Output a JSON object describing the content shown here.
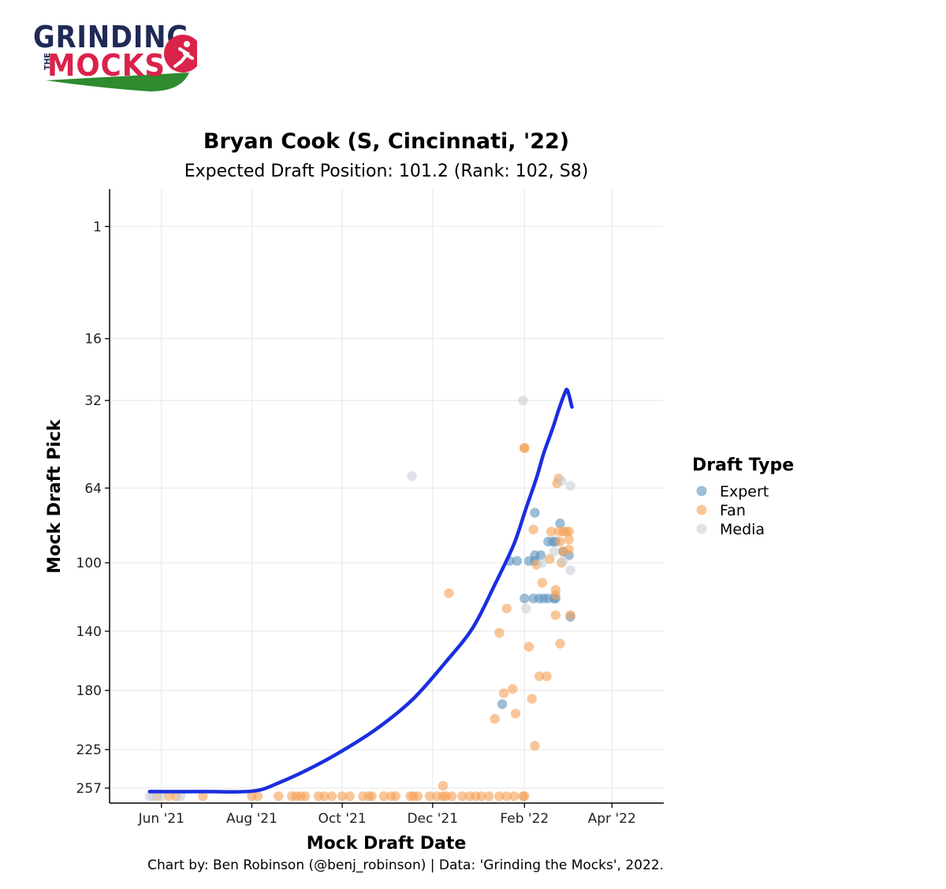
{
  "logo": {
    "line1": "GRINDING",
    "the": "THE",
    "line2": "MOCKS",
    "colors": {
      "navy": "#1f2a56",
      "red": "#d9234a",
      "green": "#2e8b2e"
    }
  },
  "chart_data": {
    "type": "scatter",
    "title": "Bryan Cook (S, Cincinnati, '22)",
    "subtitle": "Expected Draft Position: 101.2 (Rank: 102, S8)",
    "xlabel": "Mock Draft Date",
    "ylabel": "Mock Draft Pick",
    "x_ticks": [
      "2021-06-01",
      "2021-08-01",
      "2021-10-01",
      "2021-12-01",
      "2022-02-01",
      "2022-04-01"
    ],
    "x_tick_labels": [
      "Jun '21",
      "Aug '21",
      "Oct '21",
      "Dec '21",
      "Feb '22",
      "Apr '22"
    ],
    "xlim": [
      "2021-04-27",
      "2022-05-06"
    ],
    "y_scale": "sqrt",
    "y_reversed": true,
    "y_ticks": [
      1,
      16,
      32,
      64,
      100,
      140,
      180,
      225,
      257
    ],
    "ylim": [
      0,
      270
    ],
    "grid": true,
    "legend": {
      "title": "Draft Type",
      "position": "right"
    },
    "series": [
      {
        "name": "Expert",
        "color": "#5b93bd",
        "points": [
          [
            "2022-01-17",
            190
          ],
          [
            "2022-01-22",
            99
          ],
          [
            "2022-01-27",
            99
          ],
          [
            "2022-02-01",
            120
          ],
          [
            "2022-02-04",
            99
          ],
          [
            "2022-02-07",
            120
          ],
          [
            "2022-02-08",
            99
          ],
          [
            "2022-02-08",
            96
          ],
          [
            "2022-02-08",
            75
          ],
          [
            "2022-02-11",
            120
          ],
          [
            "2022-02-12",
            96
          ],
          [
            "2022-02-14",
            120
          ],
          [
            "2022-02-17",
            120
          ],
          [
            "2022-02-17",
            89
          ],
          [
            "2022-02-20",
            89
          ],
          [
            "2022-02-21",
            120
          ],
          [
            "2022-02-22",
            120
          ],
          [
            "2022-02-22",
            89
          ],
          [
            "2022-02-25",
            80
          ],
          [
            "2022-02-27",
            94
          ],
          [
            "2022-03-03",
            96
          ],
          [
            "2022-03-04",
            131
          ]
        ]
      },
      {
        "name": "Fan",
        "color": "#f5a055",
        "points": [
          [
            "2021-05-29",
            264
          ],
          [
            "2021-06-06",
            264
          ],
          [
            "2021-06-11",
            264
          ],
          [
            "2021-06-29",
            264
          ],
          [
            "2021-08-01",
            264
          ],
          [
            "2021-08-05",
            264
          ],
          [
            "2021-08-19",
            264
          ],
          [
            "2021-08-28",
            264
          ],
          [
            "2021-08-31",
            264
          ],
          [
            "2021-09-03",
            264
          ],
          [
            "2021-09-06",
            264
          ],
          [
            "2021-09-15",
            264
          ],
          [
            "2021-09-19",
            264
          ],
          [
            "2021-09-24",
            264
          ],
          [
            "2021-10-01",
            264
          ],
          [
            "2021-10-06",
            264
          ],
          [
            "2021-10-15",
            264
          ],
          [
            "2021-10-19",
            264
          ],
          [
            "2021-10-21",
            264
          ],
          [
            "2021-10-29",
            264
          ],
          [
            "2021-11-03",
            264
          ],
          [
            "2021-11-06",
            264
          ],
          [
            "2021-11-16",
            264
          ],
          [
            "2021-11-18",
            264
          ],
          [
            "2021-11-21",
            264
          ],
          [
            "2021-11-29",
            264
          ],
          [
            "2021-12-04",
            264
          ],
          [
            "2021-12-08",
            264
          ],
          [
            "2021-12-10",
            264
          ],
          [
            "2021-12-14",
            264
          ],
          [
            "2021-12-21",
            264
          ],
          [
            "2021-12-26",
            264
          ],
          [
            "2021-12-30",
            264
          ],
          [
            "2022-01-03",
            264
          ],
          [
            "2022-01-08",
            264
          ],
          [
            "2022-01-15",
            264
          ],
          [
            "2022-01-20",
            264
          ],
          [
            "2022-01-25",
            264
          ],
          [
            "2022-01-31",
            264
          ],
          [
            "2022-02-01",
            264
          ],
          [
            "2021-12-08",
            255
          ],
          [
            "2021-12-12",
            117
          ],
          [
            "2022-01-12",
            201
          ],
          [
            "2022-01-15",
            141
          ],
          [
            "2022-01-18",
            182
          ],
          [
            "2022-01-20",
            126
          ],
          [
            "2022-01-24",
            179
          ],
          [
            "2022-01-26",
            197
          ],
          [
            "2022-02-01",
            48
          ],
          [
            "2022-02-01",
            48
          ],
          [
            "2022-02-04",
            150
          ],
          [
            "2022-02-06",
            186
          ],
          [
            "2022-02-07",
            83
          ],
          [
            "2022-02-08",
            222
          ],
          [
            "2022-02-09",
            101
          ],
          [
            "2022-02-11",
            170
          ],
          [
            "2022-02-13",
            111
          ],
          [
            "2022-02-16",
            170
          ],
          [
            "2022-02-18",
            98
          ],
          [
            "2022-02-19",
            84
          ],
          [
            "2022-02-22",
            130
          ],
          [
            "2022-02-22",
            115
          ],
          [
            "2022-02-22",
            118
          ],
          [
            "2022-02-23",
            62
          ],
          [
            "2022-02-24",
            60
          ],
          [
            "2022-02-24",
            84
          ],
          [
            "2022-02-25",
            148
          ],
          [
            "2022-02-25",
            89
          ],
          [
            "2022-02-26",
            100
          ],
          [
            "2022-02-27",
            84
          ],
          [
            "2022-02-27",
            94
          ],
          [
            "2022-03-01",
            84
          ],
          [
            "2022-03-03",
            88
          ],
          [
            "2022-03-03",
            84
          ],
          [
            "2022-03-03",
            93
          ],
          [
            "2022-03-04",
            130
          ]
        ]
      },
      {
        "name": "Media",
        "color": "#c9cfd6",
        "points": [
          [
            "2021-05-24",
            264
          ],
          [
            "2021-05-26",
            264
          ],
          [
            "2021-06-01",
            264
          ],
          [
            "2021-06-14",
            264
          ],
          [
            "2021-11-17",
            59
          ],
          [
            "2022-01-31",
            32
          ],
          [
            "2022-02-02",
            126
          ],
          [
            "2022-02-13",
            100
          ],
          [
            "2022-02-21",
            94
          ],
          [
            "2022-02-26",
            61
          ],
          [
            "2022-02-27",
            99
          ],
          [
            "2022-03-04",
            63
          ],
          [
            "2022-03-04",
            104
          ]
        ]
      }
    ],
    "trend": {
      "color": "#1a2ee0",
      "points": [
        [
          "2021-05-24",
          260
        ],
        [
          "2021-06-30",
          260
        ],
        [
          "2021-08-02",
          259.5
        ],
        [
          "2021-08-20",
          252
        ],
        [
          "2021-09-10",
          240
        ],
        [
          "2021-10-01",
          226
        ],
        [
          "2021-10-25",
          208
        ],
        [
          "2021-11-18",
          186
        ],
        [
          "2021-12-10",
          160
        ],
        [
          "2021-12-28",
          138
        ],
        [
          "2022-01-12",
          112
        ],
        [
          "2022-01-25",
          90
        ],
        [
          "2022-02-02",
          73
        ],
        [
          "2022-02-09",
          60
        ],
        [
          "2022-02-14",
          50
        ],
        [
          "2022-02-20",
          41
        ],
        [
          "2022-02-24",
          35
        ],
        [
          "2022-02-28",
          30
        ],
        [
          "2022-03-02",
          29
        ],
        [
          "2022-03-05",
          34
        ]
      ]
    },
    "caption": "Chart by: Ben Robinson (@benj_robinson) | Data: 'Grinding the Mocks', 2022."
  }
}
